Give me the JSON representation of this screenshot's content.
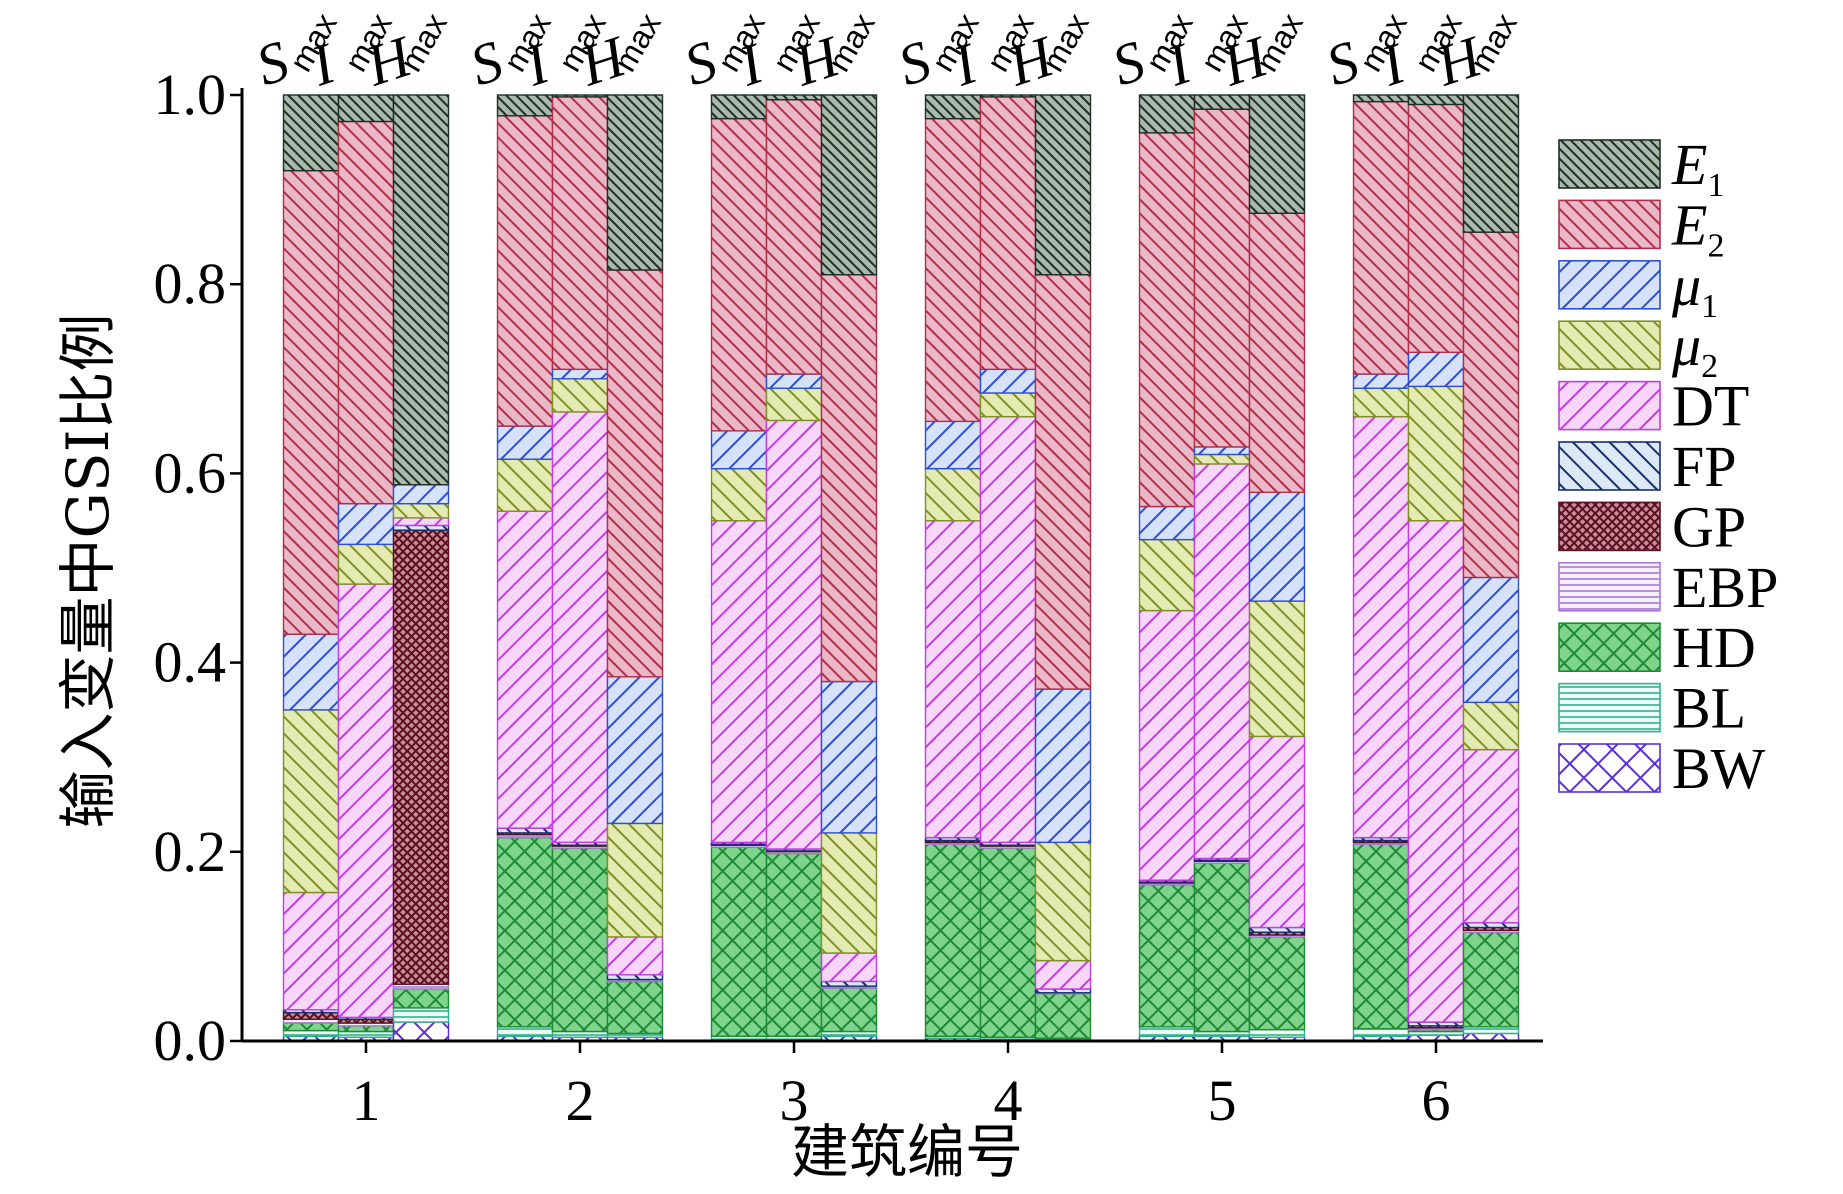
{
  "chart_data": {
    "type": "bar",
    "stacked": true,
    "title": "",
    "xlabel": "建筑编号",
    "ylabel": "输入变量中GSI比例",
    "ylim": [
      0,
      1.0
    ],
    "yticks": [
      "0.0",
      "0.2",
      "0.4",
      "0.6",
      "0.8",
      "1.0"
    ],
    "categories": [
      "1",
      "2",
      "3",
      "4",
      "5",
      "6"
    ],
    "bar_labels": [
      {
        "letter": "S",
        "sub": "max"
      },
      {
        "letter": "I",
        "sub": "max"
      },
      {
        "letter": "H",
        "sub": "max"
      }
    ],
    "series": [
      {
        "name": "E",
        "sub": "1",
        "fill": "#a9b9ac",
        "line": "#1f2e26",
        "values": [
          [
            0.08,
            0.028,
            0.412
          ],
          [
            0.022,
            0.002,
            0.185
          ],
          [
            0.025,
            0.005,
            0.19
          ],
          [
            0.025,
            0.002,
            0.19
          ],
          [
            0.04,
            0.015,
            0.125
          ],
          [
            0.007,
            0.01,
            0.145
          ]
        ]
      },
      {
        "name": "E",
        "sub": "2",
        "fill": "#ebb8c8",
        "line": "#b0304a",
        "values": [
          [
            0.49,
            0.404,
            0.0
          ],
          [
            0.328,
            0.288,
            0.43
          ],
          [
            0.33,
            0.29,
            0.43
          ],
          [
            0.32,
            0.288,
            0.438
          ],
          [
            0.395,
            0.357,
            0.295
          ],
          [
            0.288,
            0.262,
            0.365
          ]
        ]
      },
      {
        "name": "μ",
        "sub": "1",
        "fill": "#d6e2fa",
        "line": "#2f4fd0",
        "values": [
          [
            0.08,
            0.043,
            0.02
          ],
          [
            0.035,
            0.01,
            0.155
          ],
          [
            0.04,
            0.015,
            0.16
          ],
          [
            0.05,
            0.025,
            0.162
          ],
          [
            0.035,
            0.008,
            0.115
          ],
          [
            0.015,
            0.036,
            0.132
          ]
        ]
      },
      {
        "name": "μ",
        "sub": "2",
        "fill": "#e3ebb2",
        "line": "#7f9028",
        "values": [
          [
            0.193,
            0.042,
            0.015
          ],
          [
            0.055,
            0.035,
            0.12
          ],
          [
            0.055,
            0.034,
            0.127
          ],
          [
            0.055,
            0.025,
            0.125
          ],
          [
            0.075,
            0.01,
            0.143
          ],
          [
            0.03,
            0.142,
            0.05
          ]
        ]
      },
      {
        "name": "DT",
        "fill": "#f7d6f9",
        "line": "#c23ee0",
        "values": [
          [
            0.124,
            0.458,
            0.008
          ],
          [
            0.335,
            0.455,
            0.04
          ],
          [
            0.34,
            0.453,
            0.03
          ],
          [
            0.335,
            0.45,
            0.03
          ],
          [
            0.285,
            0.417,
            0.202
          ],
          [
            0.445,
            0.53,
            0.183
          ]
        ]
      },
      {
        "name": "FP",
        "fill": "#dce8f5",
        "line": "#17306e",
        "values": [
          [
            0.003,
            0.002,
            0.005
          ],
          [
            0.005,
            0.003,
            0.005
          ],
          [
            0.002,
            0.002,
            0.005
          ],
          [
            0.003,
            0.003,
            0.004
          ],
          [
            0.002,
            0.002,
            0.005
          ],
          [
            0.003,
            0.004,
            0.005
          ]
        ]
      },
      {
        "name": "GP",
        "fill": "#c98d99",
        "line": "#5a1020",
        "values": [
          [
            0.007,
            0.004,
            0.48
          ],
          [
            0.002,
            0.001,
            0.0
          ],
          [
            0.001,
            0.001,
            0.0
          ],
          [
            0.002,
            0.001,
            0.0
          ],
          [
            0.001,
            0.001,
            0.003
          ],
          [
            0.002,
            0.002,
            0.003
          ]
        ]
      },
      {
        "name": "EBP",
        "fill": "#f6effc",
        "line": "#a878d8",
        "values": [
          [
            0.004,
            0.003,
            0.005
          ],
          [
            0.003,
            0.002,
            0.002
          ],
          [
            0.002,
            0.002,
            0.002
          ],
          [
            0.002,
            0.002,
            0.001
          ],
          [
            0.002,
            0.002,
            0.002
          ],
          [
            0.002,
            0.002,
            0.002
          ]
        ]
      },
      {
        "name": "HD",
        "fill": "#7ed48a",
        "line": "#1f8a35",
        "values": [
          [
            0.008,
            0.006,
            0.02
          ],
          [
            0.2,
            0.194,
            0.055
          ],
          [
            0.2,
            0.193,
            0.046
          ],
          [
            0.203,
            0.2,
            0.047
          ],
          [
            0.15,
            0.178,
            0.098
          ],
          [
            0.195,
            0.002,
            0.1
          ]
        ]
      },
      {
        "name": "BL",
        "fill": "#eefaf5",
        "line": "#2fb38a",
        "values": [
          [
            0.006,
            0.006,
            0.015
          ],
          [
            0.01,
            0.006,
            0.004
          ],
          [
            0.003,
            0.003,
            0.005
          ],
          [
            0.002,
            0.002,
            0.001
          ],
          [
            0.01,
            0.005,
            0.008
          ],
          [
            0.008,
            0.004,
            0.007
          ]
        ]
      },
      {
        "name": "BW",
        "fill": "#ffffff",
        "line": "#5a2fd8",
        "values": [
          [
            0.005,
            0.004,
            0.02
          ],
          [
            0.005,
            0.004,
            0.004
          ],
          [
            0.002,
            0.002,
            0.005
          ],
          [
            0.003,
            0.002,
            0.002
          ],
          [
            0.005,
            0.005,
            0.004
          ],
          [
            0.005,
            0.006,
            0.008
          ]
        ]
      }
    ]
  }
}
